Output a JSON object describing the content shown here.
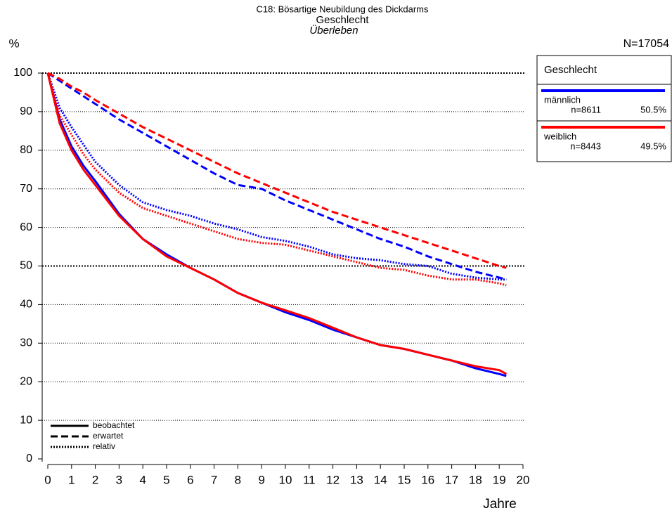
{
  "chart_data": {
    "type": "line",
    "title": "C18: Bösartige Neubildung des Dickdarms",
    "subtitle": "Geschlecht",
    "measure": "Überleben",
    "y_label": "%",
    "x_label": "Jahre",
    "total": "N=17054",
    "legend_title": "Geschlecht",
    "x": [
      0,
      0.5,
      1,
      1.5,
      2,
      3,
      4,
      5,
      6,
      7,
      8,
      9,
      10,
      11,
      12,
      13,
      14,
      15,
      16,
      17,
      18,
      19,
      19.3
    ],
    "xlim": [
      0,
      20
    ],
    "xticks": [
      0,
      1,
      2,
      3,
      4,
      5,
      6,
      7,
      8,
      9,
      10,
      11,
      12,
      13,
      14,
      15,
      16,
      17,
      18,
      19,
      20
    ],
    "ylim": [
      0,
      100
    ],
    "yticks": [
      0,
      10,
      20,
      30,
      40,
      50,
      60,
      70,
      80,
      90,
      100
    ],
    "grid": true,
    "curve_types": [
      {
        "name": "beobachtet",
        "dash": "solid"
      },
      {
        "name": "erwartet",
        "dash": "dashed"
      },
      {
        "name": "relativ",
        "dash": "dotted"
      }
    ],
    "groups": [
      {
        "name": "männlich",
        "n": "n=8611",
        "share": "50.5%",
        "color": "#0000ff",
        "curves": [
          {
            "values": [
              100,
              88,
              81,
              76,
              72,
              63.5,
              57,
              53,
              49.5,
              46.5,
              43,
              40.5,
              38,
              36,
              33.5,
              31.5,
              29.5,
              28.5,
              27,
              25.5,
              23.5,
              22,
              21.5
            ]
          },
          {
            "values": [
              100,
              98,
              96,
              94,
              92,
              88,
              84.5,
              81,
              77.5,
              74,
              71,
              70,
              67,
              64.5,
              62,
              59.5,
              57,
              55,
              52.5,
              50.5,
              48.5,
              47,
              46.5
            ]
          },
          {
            "values": [
              100,
              91,
              86,
              81.5,
              77,
              71,
              66.5,
              64.5,
              63,
              61,
              59.5,
              57.5,
              56.5,
              55,
              53,
              52,
              51.5,
              50.5,
              50,
              48,
              47,
              46.5,
              46.5
            ]
          }
        ]
      },
      {
        "name": "weiblich",
        "n": "n=8443",
        "share": "49.5%",
        "color": "#ff0000",
        "curves": [
          {
            "values": [
              100,
              87,
              80,
              75,
              71,
              63,
              57,
              52.5,
              49.5,
              46.5,
              43,
              40.5,
              38.5,
              36.5,
              34,
              31.5,
              29.5,
              28.5,
              27,
              25.5,
              24,
              23,
              22
            ]
          },
          {
            "values": [
              100,
              98.5,
              96.5,
              95,
              93,
              89.5,
              86,
              83,
              80,
              77,
              74,
              71.5,
              69,
              66.5,
              64,
              62,
              60,
              58,
              56,
              54,
              52,
              50,
              49.5
            ]
          },
          {
            "values": [
              100,
              89,
              84,
              79,
              75,
              69,
              65,
              63,
              61,
              59,
              57,
              56,
              55.5,
              54,
              52.5,
              51,
              49.5,
              49,
              47.5,
              46.5,
              46.5,
              45.5,
              45
            ]
          }
        ]
      }
    ]
  }
}
